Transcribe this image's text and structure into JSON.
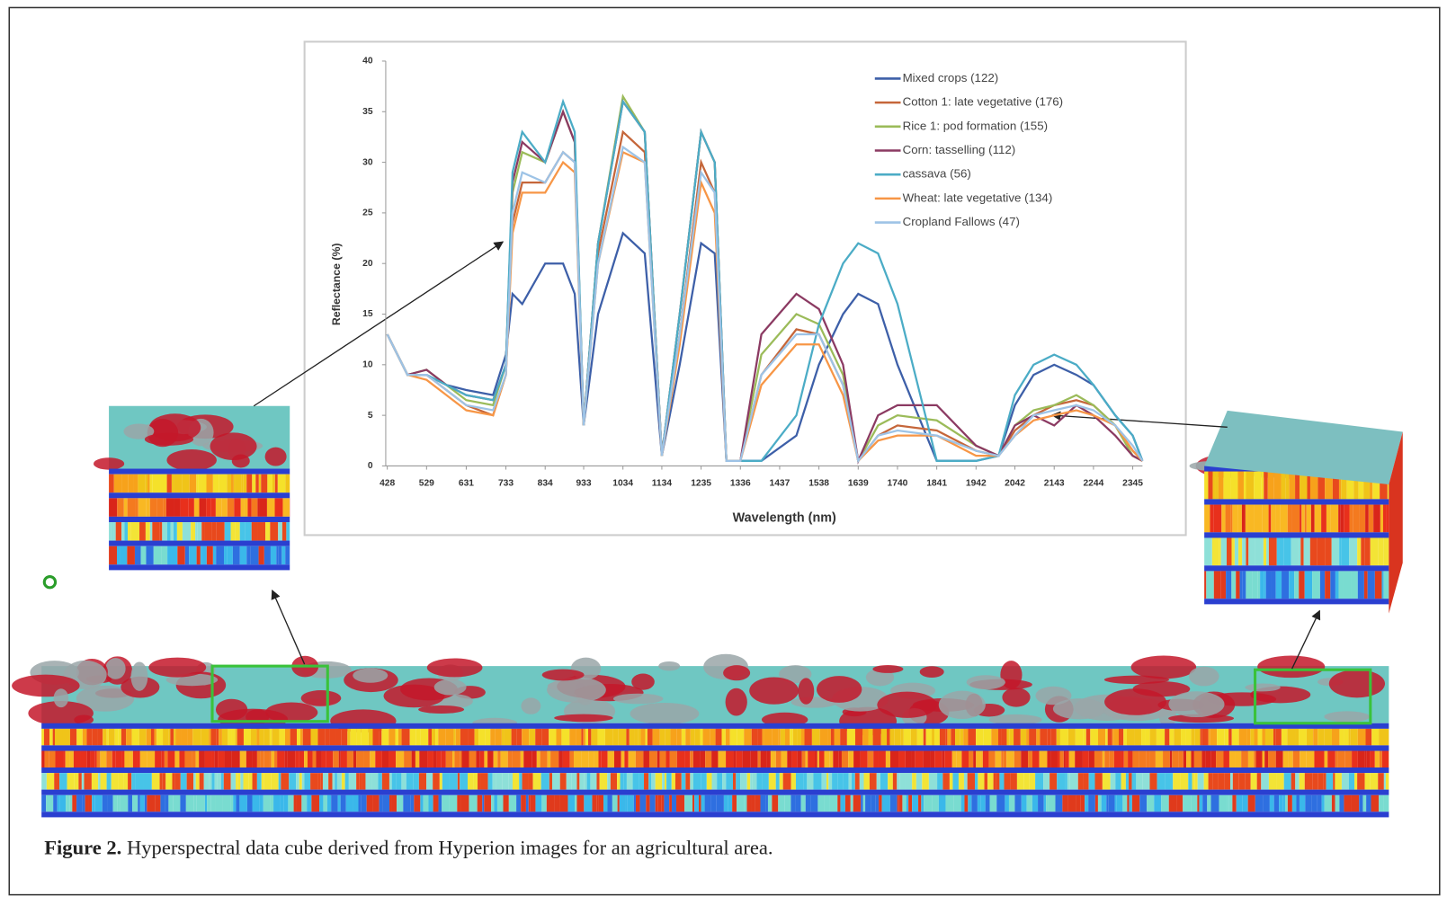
{
  "chart_data": {
    "type": "line",
    "y_label": "Reflectance (%)",
    "x_label": "Wavelength (nm)",
    "x": [
      428,
      480,
      529,
      580,
      631,
      700,
      733,
      750,
      775,
      834,
      880,
      910,
      933,
      970,
      1034,
      1090,
      1134,
      1180,
      1235,
      1270,
      1300,
      1336,
      1390,
      1480,
      1538,
      1600,
      1639,
      1690,
      1740,
      1841,
      1942,
      2000,
      2042,
      2090,
      2143,
      2200,
      2244,
      2300,
      2345,
      2370
    ],
    "xlim": [
      424,
      2370
    ],
    "xticks": [
      428,
      529,
      631,
      733,
      834,
      933,
      1034,
      1134,
      1235,
      1336,
      1437,
      1538,
      1639,
      1740,
      1841,
      1942,
      2042,
      2143,
      2244,
      2345
    ],
    "ylim": [
      0,
      40
    ],
    "yticks": [
      0,
      5,
      10,
      15,
      20,
      25,
      30,
      35,
      40
    ],
    "legend": "top-right",
    "series": [
      {
        "name": "Mixed crops (122)",
        "color": "#3d5fa8",
        "values": [
          13,
          9,
          9,
          8,
          7.5,
          7,
          11,
          17,
          16,
          20,
          20,
          17,
          4,
          15,
          23,
          21,
          1,
          10,
          22,
          21,
          0.5,
          0.5,
          0.5,
          3,
          10,
          15,
          17,
          16,
          10,
          0.5,
          0.5,
          1,
          6,
          9,
          10,
          9,
          8,
          5,
          3,
          0.5
        ]
      },
      {
        "name": "Cotton 1: late vegetative (176)",
        "color": "#c5663a",
        "values": [
          13,
          9,
          9,
          7.5,
          6,
          5,
          9,
          24,
          28,
          28,
          31,
          30,
          4,
          21,
          33,
          31,
          1,
          13,
          30,
          27,
          0.5,
          0.5,
          9,
          13.5,
          13,
          8,
          0.5,
          3,
          4,
          3.5,
          1.5,
          1,
          3.5,
          5,
          6,
          6.5,
          6,
          4,
          1.5,
          0.5
        ]
      },
      {
        "name": "Rice 1: pod formation (155)",
        "color": "#9bbb59",
        "values": [
          13,
          9,
          9.5,
          8,
          6.5,
          6,
          10,
          27,
          31,
          30,
          35,
          32,
          4,
          22,
          36.5,
          33,
          1,
          15,
          33,
          30,
          0.5,
          0.5,
          11,
          15,
          14,
          9,
          0.5,
          4,
          5,
          4.5,
          2,
          1,
          4,
          5.5,
          6,
          7,
          6,
          4,
          1,
          0.5
        ]
      },
      {
        "name": "Corn: tasselling (112)",
        "color": "#8b3a62",
        "values": [
          13,
          9,
          9.5,
          8,
          7,
          6.5,
          10,
          28,
          32,
          30,
          35,
          32,
          4,
          22,
          36,
          33,
          1,
          15,
          33,
          30,
          0.5,
          0.5,
          13,
          17,
          15.5,
          10,
          0.5,
          5,
          6,
          6,
          2,
          1,
          4,
          5,
          4,
          6,
          5,
          3,
          1,
          0.5
        ]
      },
      {
        "name": "cassava (56)",
        "color": "#4bacc6",
        "values": [
          13,
          9,
          9,
          8,
          7,
          6.5,
          10,
          29,
          33,
          30,
          36,
          33,
          4,
          22,
          36,
          33,
          1,
          15,
          33,
          30,
          0.5,
          0.5,
          0.5,
          5,
          14,
          20,
          22,
          21,
          16,
          0.5,
          0.5,
          1,
          7,
          10,
          11,
          10,
          8,
          5,
          3,
          0.5
        ]
      },
      {
        "name": "Wheat: late vegetative (134)",
        "color": "#f79646",
        "values": [
          13,
          9,
          8.5,
          7,
          5.5,
          5,
          9,
          23,
          27,
          27,
          30,
          29,
          4,
          20,
          31,
          30,
          1,
          12,
          28,
          25,
          0.5,
          0.5,
          8,
          12,
          12,
          7,
          0.5,
          2.5,
          3,
          3,
          1,
          1,
          3,
          4.5,
          5,
          5.5,
          5,
          4,
          1.5,
          0.5
        ]
      },
      {
        "name": "Cropland Fallows (47)",
        "color": "#9dc3e6",
        "values": [
          13,
          9,
          9,
          7.5,
          6,
          5.5,
          9,
          25,
          29,
          28,
          31,
          30,
          4,
          20,
          31.5,
          30,
          1,
          13,
          29,
          27,
          0.5,
          0.5,
          9,
          13,
          13,
          8,
          0.5,
          3,
          3.5,
          3,
          1.5,
          1,
          3,
          5,
          5.5,
          6,
          5.5,
          4,
          2,
          0.5
        ]
      }
    ]
  },
  "figure_label": "Figure 2.",
  "caption": "Hyperspectral data cube derived from Hyperion images for an agricultural area."
}
